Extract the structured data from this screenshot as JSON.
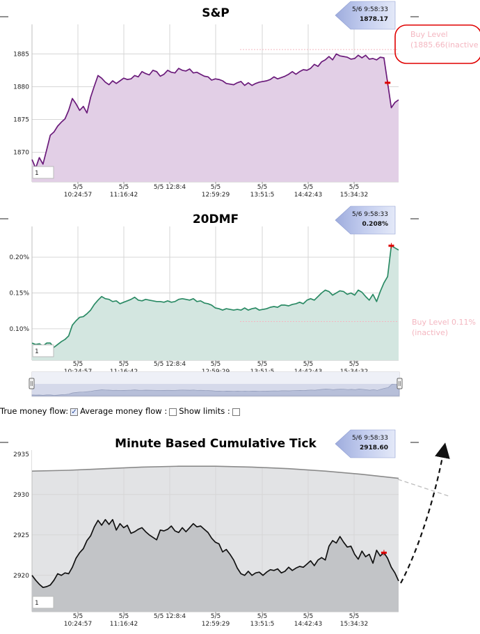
{
  "x_axis": {
    "ticks": [
      {
        "date": "5/5",
        "time": "10:24:57"
      },
      {
        "date": "5/5",
        "time": "11:16:42"
      },
      {
        "date": "5/5 12:8:4",
        "time": ""
      },
      {
        "date": "5/5",
        "time": "12:59:29"
      },
      {
        "date": "5/5",
        "time": "13:51:5"
      },
      {
        "date": "5/5",
        "time": "14:42:43"
      },
      {
        "date": "5/5",
        "time": "15:34:32"
      }
    ]
  },
  "controls": {
    "true_money_flow_label": "True money flow:",
    "true_money_flow_checked": true,
    "average_money_flow_label": "Average money flow :",
    "average_money_flow_checked": false,
    "show_limits_label": "Show limits :",
    "show_limits_checked": false
  },
  "colors": {
    "sp_line": "#6a1a7a",
    "sp_fill": "#e2cfe6",
    "dmf_line": "#2a8a64",
    "dmf_fill": "#d3e6e0",
    "tick_line": "#111111",
    "tick_fill": "#c2c4c7",
    "tick_band": "#e2e3e5",
    "upper_line": "#8a8a8a",
    "buy_level": "#f4b6c0",
    "callout": "#e00000",
    "tooltip": "#b0bde6",
    "marker": "#dd0000"
  },
  "chart_data": [
    {
      "type": "line",
      "title": "S&P",
      "ylim": [
        1865.5,
        1889.5
      ],
      "yticks": [
        1870,
        1875,
        1880,
        1885
      ],
      "xlabel": "",
      "ylabel": "",
      "grid": true,
      "zoom_label": "1",
      "tooltip": {
        "time": "5/6 9:58:33",
        "value": "1878.17"
      },
      "buy_level": {
        "value": 1885.66,
        "label1": "Buy Level",
        "label2": "(1885.66(inactive"
      },
      "series": [
        {
          "x": [
            0,
            1,
            2,
            3,
            4,
            5,
            6,
            7,
            8,
            9,
            10,
            11,
            12,
            13,
            14,
            15,
            16,
            17,
            18,
            19,
            20,
            21,
            22,
            23,
            24,
            25,
            26,
            27,
            28,
            29,
            30,
            31,
            32,
            33,
            34,
            35,
            36,
            37,
            38,
            39,
            40,
            41,
            42,
            43,
            44,
            45,
            46,
            47,
            48,
            49,
            50,
            51,
            52,
            53,
            54,
            55,
            56,
            57,
            58,
            59,
            60,
            61,
            62,
            63,
            64,
            65,
            66,
            67,
            68,
            69,
            70,
            71,
            72,
            73,
            74,
            75,
            76,
            77,
            78,
            79,
            80,
            81,
            82,
            83,
            84,
            85,
            86,
            87,
            88,
            89,
            90,
            91,
            92,
            93,
            94,
            95,
            96,
            97,
            98,
            99,
            100
          ],
          "values": [
            1868.9,
            1867.6,
            1869.2,
            1868.2,
            1870.4,
            1872.6,
            1873.1,
            1874.0,
            1874.6,
            1875.1,
            1876.4,
            1878.2,
            1877.4,
            1876.4,
            1877.0,
            1876.0,
            1878.4,
            1880.1,
            1881.7,
            1881.3,
            1880.7,
            1880.3,
            1880.9,
            1880.5,
            1880.9,
            1881.3,
            1881.1,
            1881.2,
            1881.7,
            1881.5,
            1882.3,
            1882.0,
            1881.8,
            1882.5,
            1882.3,
            1881.6,
            1881.9,
            1882.5,
            1882.2,
            1882.1,
            1882.8,
            1882.5,
            1882.4,
            1882.7,
            1882.1,
            1882.2,
            1881.9,
            1881.6,
            1881.5,
            1881.0,
            1881.2,
            1881.1,
            1880.9,
            1880.5,
            1880.4,
            1880.3,
            1880.6,
            1880.8,
            1880.2,
            1880.6,
            1880.2,
            1880.5,
            1880.7,
            1880.8,
            1880.9,
            1881.1,
            1881.5,
            1881.2,
            1881.4,
            1881.6,
            1881.9,
            1882.3,
            1881.9,
            1882.3,
            1882.6,
            1882.5,
            1882.8,
            1883.4,
            1883.1,
            1883.8,
            1884.1,
            1884.6,
            1884.1,
            1885.0,
            1884.7,
            1884.6,
            1884.5,
            1884.2,
            1884.3,
            1884.8,
            1884.4,
            1884.8,
            1884.2,
            1884.3,
            1884.1,
            1884.5,
            1884.4,
            1880.6,
            1876.8,
            1877.6,
            1878.0
          ]
        }
      ]
    },
    {
      "type": "line",
      "title": "20DMF",
      "ylim": [
        0.056,
        0.243
      ],
      "yticks": [
        0.1,
        0.15,
        0.2
      ],
      "ytick_labels": [
        "0.10%",
        "0.15%",
        "0.20%"
      ],
      "xlabel": "",
      "ylabel": "",
      "grid": true,
      "zoom_label": "1",
      "tooltip": {
        "time": "5/6 9:58:33",
        "value": "0.208%"
      },
      "buy_level": {
        "value": 0.11,
        "label1": "Buy Level 0.11%",
        "label2": "(inactive)"
      },
      "series": [
        {
          "x": [
            0,
            1,
            2,
            3,
            4,
            5,
            6,
            7,
            8,
            9,
            10,
            11,
            12,
            13,
            14,
            15,
            16,
            17,
            18,
            19,
            20,
            21,
            22,
            23,
            24,
            25,
            26,
            27,
            28,
            29,
            30,
            31,
            32,
            33,
            34,
            35,
            36,
            37,
            38,
            39,
            40,
            41,
            42,
            43,
            44,
            45,
            46,
            47,
            48,
            49,
            50,
            51,
            52,
            53,
            54,
            55,
            56,
            57,
            58,
            59,
            60,
            61,
            62,
            63,
            64,
            65,
            66,
            67,
            68,
            69,
            70,
            71,
            72,
            73,
            74,
            75,
            76,
            77,
            78,
            79,
            80,
            81,
            82,
            83,
            84,
            85,
            86,
            87,
            88,
            89,
            90,
            91,
            92,
            93,
            94,
            95,
            96,
            97,
            98,
            99,
            100
          ],
          "values": [
            0.08,
            0.078,
            0.079,
            0.076,
            0.08,
            0.08,
            0.074,
            0.078,
            0.082,
            0.085,
            0.09,
            0.105,
            0.111,
            0.116,
            0.117,
            0.121,
            0.126,
            0.134,
            0.14,
            0.145,
            0.142,
            0.141,
            0.138,
            0.139,
            0.135,
            0.137,
            0.139,
            0.141,
            0.144,
            0.14,
            0.139,
            0.141,
            0.14,
            0.139,
            0.138,
            0.138,
            0.137,
            0.139,
            0.137,
            0.138,
            0.141,
            0.142,
            0.141,
            0.14,
            0.142,
            0.138,
            0.139,
            0.136,
            0.135,
            0.133,
            0.129,
            0.128,
            0.126,
            0.128,
            0.127,
            0.126,
            0.127,
            0.126,
            0.129,
            0.126,
            0.128,
            0.129,
            0.126,
            0.127,
            0.128,
            0.13,
            0.131,
            0.13,
            0.133,
            0.133,
            0.132,
            0.134,
            0.135,
            0.137,
            0.135,
            0.14,
            0.142,
            0.14,
            0.145,
            0.15,
            0.154,
            0.152,
            0.147,
            0.15,
            0.153,
            0.152,
            0.148,
            0.15,
            0.147,
            0.154,
            0.151,
            0.145,
            0.14,
            0.148,
            0.138,
            0.152,
            0.164,
            0.173,
            0.216,
            0.213,
            0.21
          ]
        }
      ]
    },
    {
      "type": "area",
      "title": "Minute Based Cumulative Tick",
      "ylim": [
        2915.5,
        2935.5
      ],
      "yticks": [
        2920,
        2925,
        2930,
        2935
      ],
      "xlabel": "",
      "ylabel": "",
      "grid": true,
      "zoom_label": "1",
      "tooltip": {
        "time": "5/6 9:58:33",
        "value": "2918.60"
      },
      "series": [
        {
          "x": [
            0,
            10,
            20,
            30,
            40,
            50,
            60,
            70,
            80,
            90,
            100
          ],
          "values": [
            2932.9,
            2933.0,
            2933.2,
            2933.4,
            2933.5,
            2933.5,
            2933.4,
            2933.2,
            2932.9,
            2932.5,
            2932.0
          ]
        },
        {
          "x": [
            0,
            1,
            2,
            3,
            4,
            5,
            6,
            7,
            8,
            9,
            10,
            11,
            12,
            13,
            14,
            15,
            16,
            17,
            18,
            19,
            20,
            21,
            22,
            23,
            24,
            25,
            26,
            27,
            28,
            29,
            30,
            31,
            32,
            33,
            34,
            35,
            36,
            37,
            38,
            39,
            40,
            41,
            42,
            43,
            44,
            45,
            46,
            47,
            48,
            49,
            50,
            51,
            52,
            53,
            54,
            55,
            56,
            57,
            58,
            59,
            60,
            61,
            62,
            63,
            64,
            65,
            66,
            67,
            68,
            69,
            70,
            71,
            72,
            73,
            74,
            75,
            76,
            77,
            78,
            79,
            80,
            81,
            82,
            83,
            84,
            85,
            86,
            87,
            88,
            89,
            90,
            91,
            92,
            93,
            94,
            95,
            96,
            97,
            98,
            99,
            100
          ],
          "values": [
            2920.0,
            2919.4,
            2918.9,
            2918.5,
            2918.6,
            2918.8,
            2919.4,
            2920.2,
            2920.0,
            2920.3,
            2920.2,
            2921.0,
            2922.1,
            2922.8,
            2923.3,
            2924.3,
            2924.9,
            2926.0,
            2926.8,
            2926.2,
            2926.9,
            2926.3,
            2926.9,
            2925.6,
            2926.4,
            2925.9,
            2926.2,
            2925.2,
            2925.4,
            2925.7,
            2925.9,
            2925.4,
            2925.0,
            2924.7,
            2924.4,
            2925.6,
            2925.5,
            2925.7,
            2926.1,
            2925.5,
            2925.3,
            2925.9,
            2925.4,
            2925.9,
            2926.4,
            2926.0,
            2926.1,
            2925.7,
            2925.3,
            2924.6,
            2924.1,
            2923.9,
            2922.9,
            2923.2,
            2922.6,
            2921.9,
            2920.9,
            2920.2,
            2920.0,
            2920.5,
            2920.0,
            2920.3,
            2920.4,
            2920.0,
            2920.4,
            2920.7,
            2920.6,
            2920.8,
            2920.3,
            2920.5,
            2921.0,
            2920.6,
            2920.9,
            2921.1,
            2921.0,
            2921.4,
            2921.8,
            2921.2,
            2921.9,
            2922.2,
            2921.9,
            2923.6,
            2924.3,
            2924.0,
            2924.8,
            2924.1,
            2923.5,
            2923.6,
            2922.6,
            2922.0,
            2923.0,
            2922.3,
            2922.6,
            2921.5,
            2923.1,
            2922.4,
            2922.8,
            2922.1,
            2921.0,
            2920.3,
            2919.3
          ]
        }
      ]
    }
  ]
}
